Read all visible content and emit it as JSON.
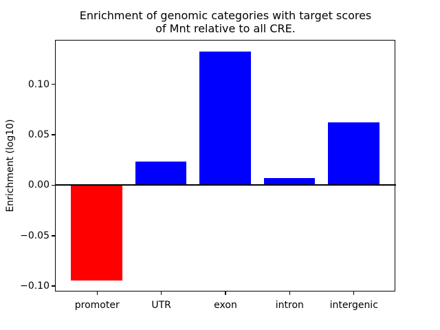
{
  "chart_data": {
    "type": "bar",
    "title": "Enrichment of genomic categories with target scores\nof Mnt relative to all CRE.",
    "title_lines": [
      "Enrichment of genomic categories with target scores",
      "of Mnt relative to all CRE."
    ],
    "xlabel": "",
    "ylabel": "Enrichment (log10)",
    "categories": [
      "promoter",
      "UTR",
      "exon",
      "intron",
      "intergenic"
    ],
    "values": [
      -0.095,
      0.023,
      0.132,
      0.007,
      0.062
    ],
    "bar_colors": [
      "#ff0000",
      "#0000ff",
      "#0000ff",
      "#0000ff",
      "#0000ff"
    ],
    "ylim": [
      -0.105,
      0.143
    ],
    "yticks": [
      0.1,
      0.05,
      0.0,
      -0.05,
      -0.1
    ],
    "ytick_labels": [
      "0.10",
      "0.05",
      "0.00",
      "−0.05",
      "−0.10"
    ],
    "zero_line": true,
    "grid": false,
    "legend": "none",
    "bar_width_ratio": 0.8,
    "background_color": "#ffffff",
    "axis_color": "#000000"
  }
}
